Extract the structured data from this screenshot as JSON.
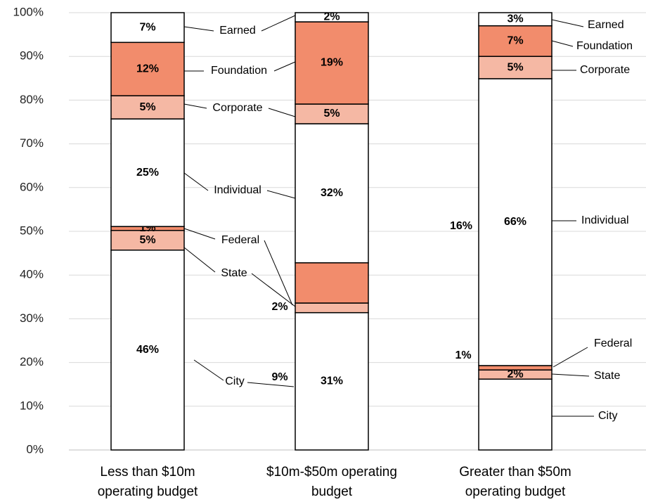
{
  "chart_data": {
    "type": "stacked-bar",
    "categories": [
      "Less than $10m operating budget",
      "$10m-$50m operating budget",
      "Greater than $50m operating budget"
    ],
    "series": [
      {
        "name": "City",
        "color": "#ffffff",
        "values": [
          45.7,
          31.4,
          16.2
        ],
        "value_labels": [
          "46%",
          "31%",
          "16%"
        ]
      },
      {
        "name": "State",
        "color": "#f5b8a4",
        "values": [
          4.5,
          2.2,
          2.1
        ],
        "value_labels": [
          "5%",
          "2%",
          "2%"
        ]
      },
      {
        "name": "Federal",
        "color": "#f28c6c",
        "values": [
          0.9,
          9.2,
          1.0
        ],
        "value_labels": [
          "1%",
          "9%",
          "1%"
        ]
      },
      {
        "name": "Individual",
        "color": "#ffffff",
        "values": [
          24.6,
          31.8,
          65.6
        ],
        "value_labels": [
          "25%",
          "32%",
          "66%"
        ]
      },
      {
        "name": "Corporate",
        "color": "#f5b8a4",
        "values": [
          5.3,
          4.5,
          5.1
        ],
        "value_labels": [
          "5%",
          "5%",
          "5%"
        ]
      },
      {
        "name": "Foundation",
        "color": "#f28c6c",
        "values": [
          12.2,
          18.8,
          7.0
        ],
        "value_labels": [
          "12%",
          "19%",
          "7%"
        ]
      },
      {
        "name": "Earned",
        "color": "#ffffff",
        "values": [
          6.8,
          2.1,
          3.0
        ],
        "value_labels": [
          "7%",
          "2%",
          "3%"
        ]
      }
    ],
    "ylim": [
      0,
      100
    ],
    "yticks": [
      {
        "value": 0,
        "label": "0%"
      },
      {
        "value": 10,
        "label": "10%"
      },
      {
        "value": 20,
        "label": "20%"
      },
      {
        "value": 30,
        "label": "30%"
      },
      {
        "value": 40,
        "label": "40%"
      },
      {
        "value": 50,
        "label": "50%"
      },
      {
        "value": 60,
        "label": "60%"
      },
      {
        "value": 70,
        "label": "70%"
      },
      {
        "value": 80,
        "label": "80%"
      },
      {
        "value": 90,
        "label": "90%"
      },
      {
        "value": 100,
        "label": "100%"
      }
    ],
    "grid": true
  }
}
